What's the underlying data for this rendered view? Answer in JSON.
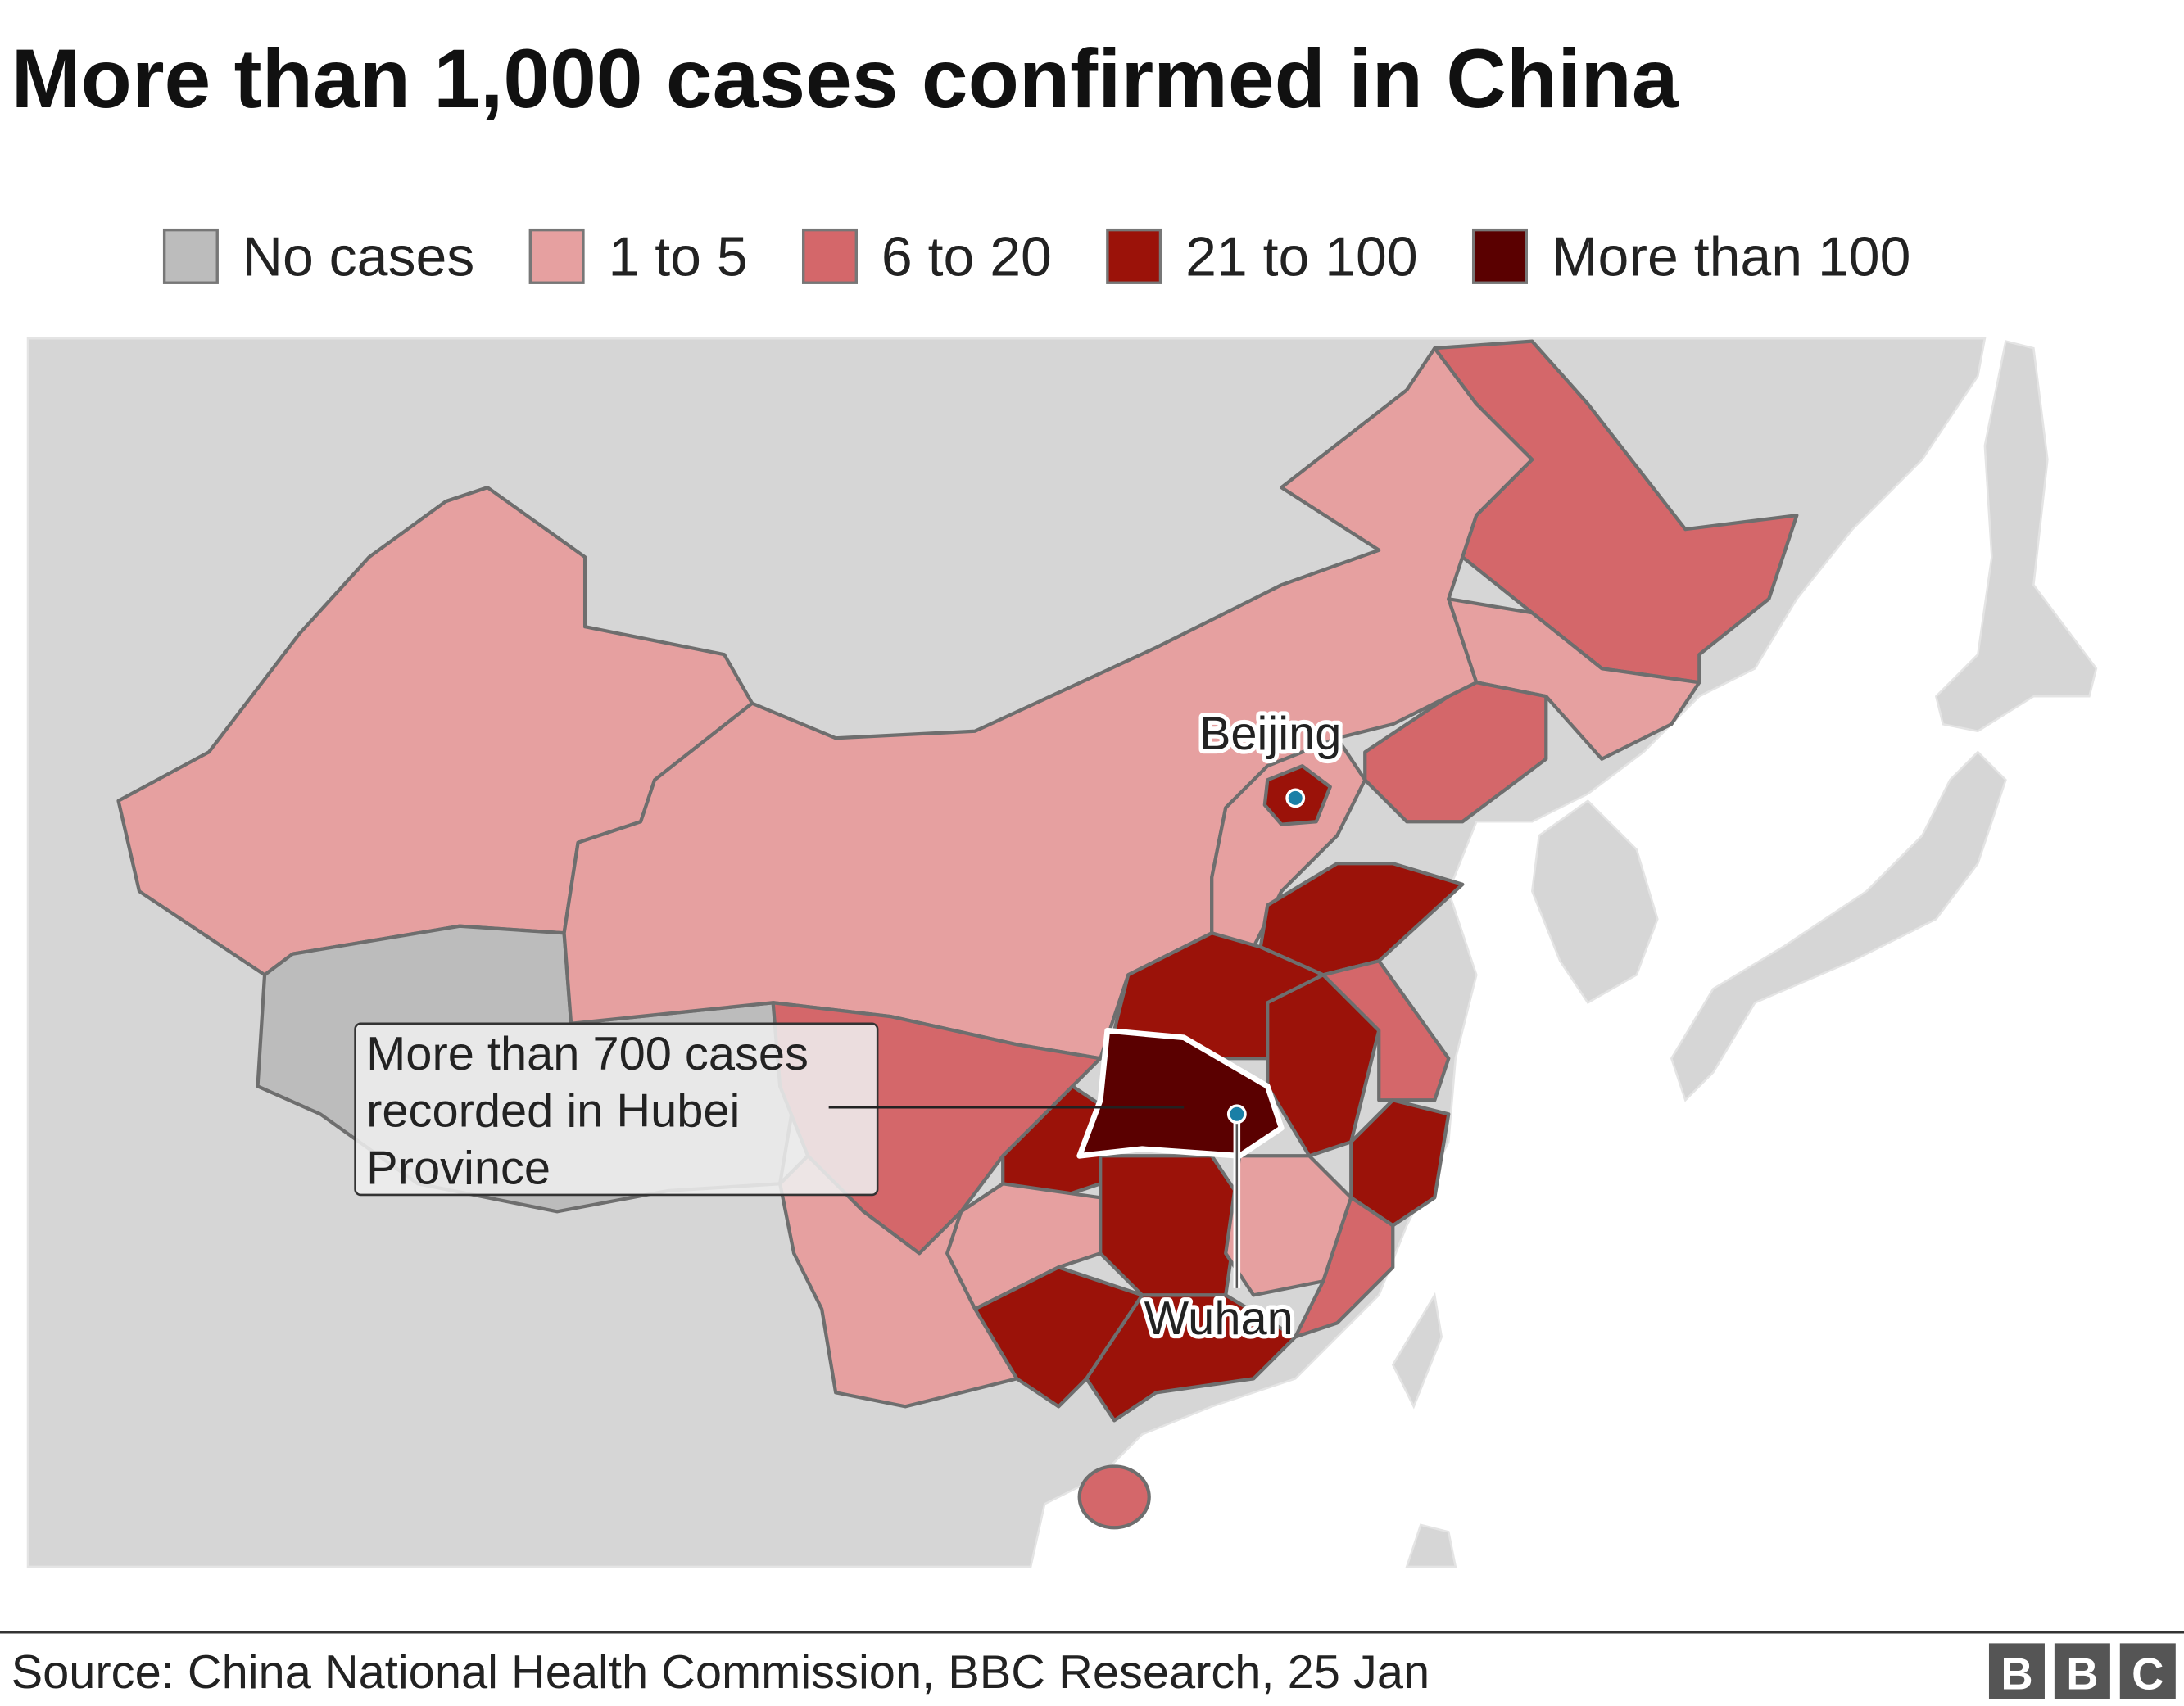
{
  "title": "More than 1,000 cases confirmed in China",
  "legend": [
    {
      "label": "No cases",
      "color": "#bcbcbc"
    },
    {
      "label": "1 to 5",
      "color": "#e6a0a0"
    },
    {
      "label": "6 to 20",
      "color": "#d4676a"
    },
    {
      "label": "21 to 100",
      "color": "#9b1209"
    },
    {
      "label": "More than 100",
      "color": "#5a0000"
    }
  ],
  "labels": {
    "beijing": "Beijing",
    "wuhan": "Wuhan"
  },
  "callout": [
    "More than 700 cases",
    "recorded in Hubei",
    "Province"
  ],
  "source": "Source: China National Health Commission, BBC Research, 25 Jan",
  "logo": "BBC"
}
